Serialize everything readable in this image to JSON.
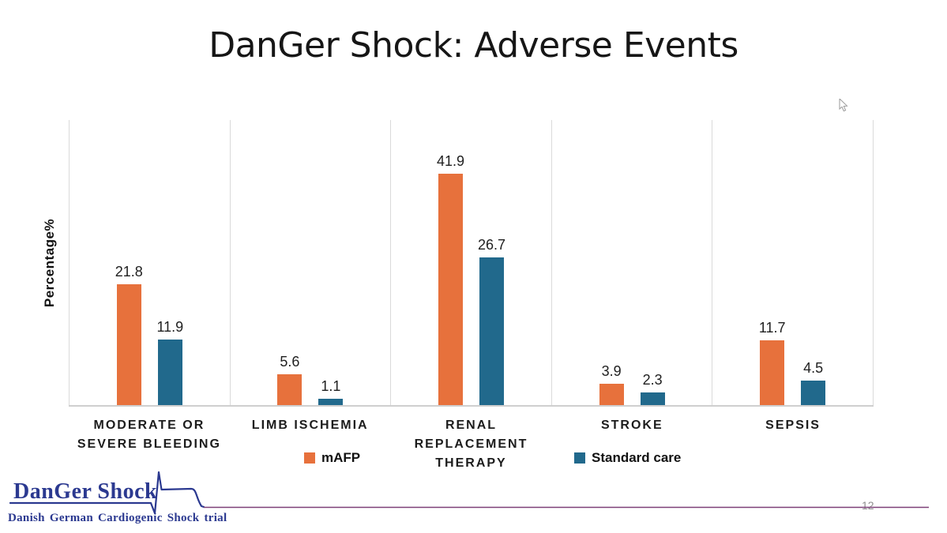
{
  "slide": {
    "page_number": "12"
  },
  "chart_data": {
    "type": "bar",
    "title": "DanGer Shock: Adverse Events",
    "ylabel": "Percentage%",
    "categories": [
      "MODERATE OR SEVERE BLEEDING",
      "LIMB ISCHEMIA",
      "RENAL REPLACEMENT THERAPY",
      "STROKE",
      "SEPSIS"
    ],
    "series": [
      {
        "name": "mAFP",
        "color": "#E7713C",
        "values": [
          21.8,
          5.6,
          41.9,
          3.9,
          11.7
        ]
      },
      {
        "name": "Standard care",
        "color": "#21698C",
        "values": [
          11.9,
          1.1,
          26.7,
          2.3,
          4.5
        ]
      }
    ],
    "data_labels": true,
    "legend_position": "bottom",
    "grid": "vertical category separators only, light grey, no y-axis ticks"
  },
  "logo": {
    "name": "DanGer Shock",
    "subtitle": "Danish German Cardiogenic Shock trial"
  },
  "icons": {
    "cursor": "arrow-pointer-icon",
    "logo_waveform": "arterial-pressure-waveform"
  },
  "colors": {
    "mafp_orange": "#E7713C",
    "standard_care_blue": "#21698C",
    "logo_navy": "#2b3990",
    "divider_purple": "#7d4078",
    "gridline_grey": "#dadada",
    "page_number_grey": "#8f8f8f"
  }
}
